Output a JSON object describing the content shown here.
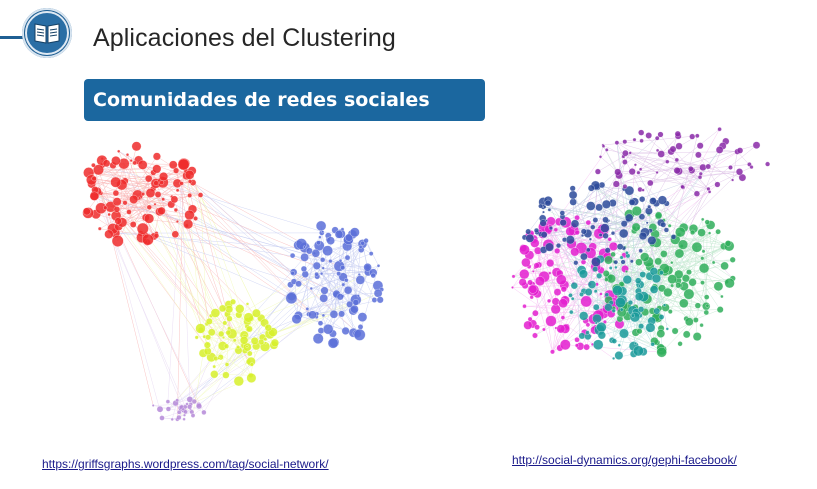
{
  "slide": {
    "title": "Aplicaciones del Clustering",
    "section": "Comunidades de redes sociales",
    "icon": "open-book-icon"
  },
  "colors": {
    "brand_blue": "#1f5f93",
    "banner_blue": "#1b679f",
    "link_color": "#1a1a8a"
  },
  "images": {
    "left_network": {
      "icon": "social-network-graph",
      "communities": [
        {
          "name": "red",
          "color": "#ee2c2c"
        },
        {
          "name": "blue",
          "color": "#5a6fd8"
        },
        {
          "name": "yellow-green",
          "color": "#d7f02a"
        },
        {
          "name": "lavender",
          "color": "#b58ad8"
        }
      ]
    },
    "right_network": {
      "icon": "facebook-network-graph",
      "communities": [
        {
          "name": "magenta",
          "color": "#e31ecf"
        },
        {
          "name": "green",
          "color": "#2fae5b"
        },
        {
          "name": "teal",
          "color": "#1a9a9a"
        },
        {
          "name": "navy",
          "color": "#2c4a9a"
        },
        {
          "name": "purple",
          "color": "#8a2aa8"
        }
      ]
    }
  },
  "links": {
    "left": "https://griffsgraphs.wordpress.com/tag/social-network/",
    "right": "http://social-dynamics.org/gephi-facebook/"
  }
}
